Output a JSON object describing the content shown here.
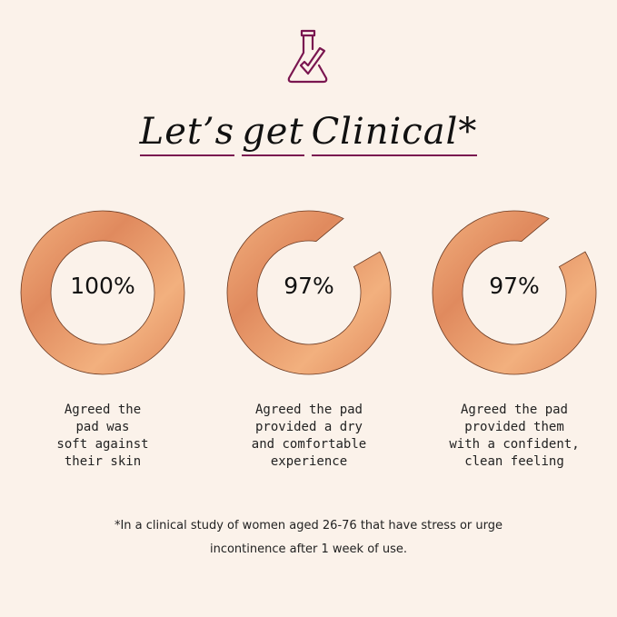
{
  "header": {
    "icon": "flask-check-icon",
    "title_words": [
      "Let’s",
      "get",
      "Clinical*"
    ],
    "accent_color": "#7a1650"
  },
  "stats": [
    {
      "value_label": "100%",
      "percent": 100,
      "caption": "Agreed the\npad was\nsoft against\ntheir skin"
    },
    {
      "value_label": "97%",
      "percent": 97,
      "caption": "Agreed the pad\nprovided a dry\nand comfortable\nexperience"
    },
    {
      "value_label": "97%",
      "percent": 97,
      "caption": "Agreed the pad\nprovided them\nwith a confident,\nclean feeling"
    }
  ],
  "ring_colors": {
    "light": "#f2b07e",
    "dark": "#e08a5e"
  },
  "footnote": {
    "line1": "*In a clinical study of women aged 26-76 that have stress or urge",
    "line2": "incontinence after 1 week of use."
  }
}
